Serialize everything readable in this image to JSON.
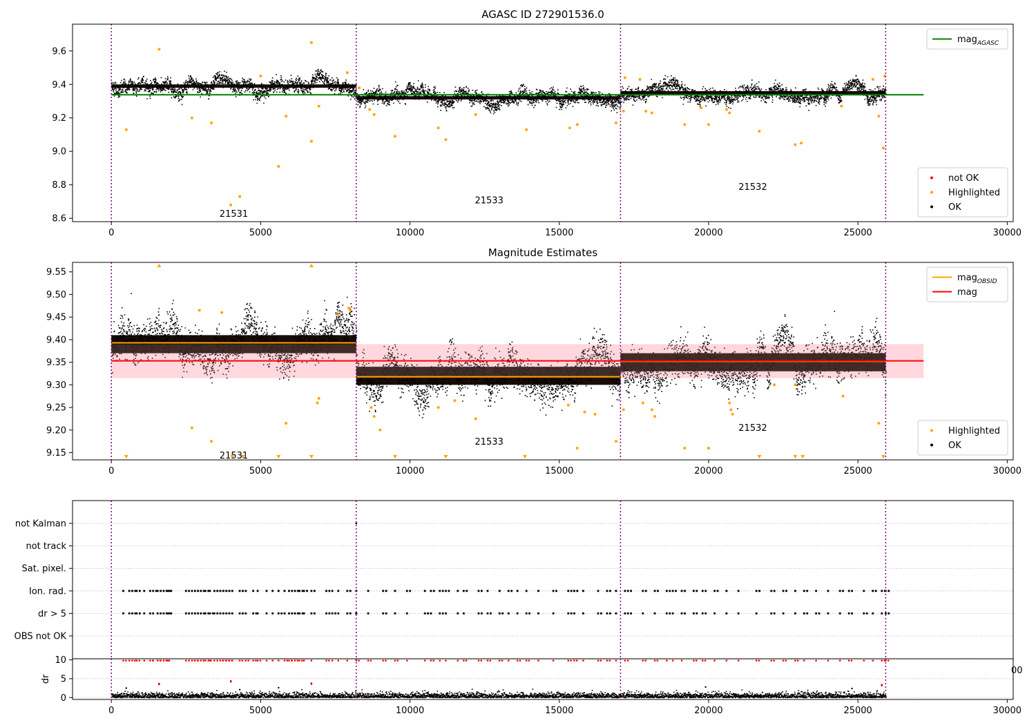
{
  "chart_data": [
    {
      "type": "scatter",
      "title": "AGASC ID 272901536.0",
      "xlim": [
        -1300,
        30200
      ],
      "ylim": [
        8.58,
        9.76
      ],
      "xticks": [
        0,
        5000,
        10000,
        15000,
        20000,
        25000,
        30000
      ],
      "yticks": [
        8.6,
        8.8,
        9.0,
        9.2,
        9.4,
        9.6
      ],
      "ytick_decimals": 1,
      "grid": false,
      "obs_boundaries": [
        0,
        8200,
        17050,
        25930
      ],
      "obs_labels": [
        {
          "text": "21531",
          "x": 4100,
          "y": 8.63
        },
        {
          "text": "21533",
          "x": 12650,
          "y": 8.71
        },
        {
          "text": "21532",
          "x": 21480,
          "y": 8.79
        }
      ],
      "segments": [
        {
          "x0": 0,
          "x1": 8200,
          "mean": 9.39,
          "spread": 0.06,
          "dense": [
            9.38,
            9.4
          ]
        },
        {
          "x0": 8200,
          "x1": 17050,
          "mean": 9.32,
          "spread": 0.06,
          "dense": [
            9.31,
            9.33
          ]
        },
        {
          "x0": 17050,
          "x1": 25930,
          "mean": 9.35,
          "spread": 0.06,
          "dense": [
            9.34,
            9.36
          ]
        }
      ],
      "ref_lines": [
        {
          "name": "mag_AGASC",
          "y": 9.338,
          "x0": 0,
          "x1": 27200,
          "color": "#008000"
        }
      ],
      "band": null,
      "highlighted": [
        [
          500,
          9.13
        ],
        [
          1600,
          9.61
        ],
        [
          2700,
          9.2
        ],
        [
          3350,
          9.17
        ],
        [
          4000,
          8.68
        ],
        [
          4300,
          8.73
        ],
        [
          5000,
          9.45
        ],
        [
          5600,
          8.91
        ],
        [
          5850,
          9.21
        ],
        [
          6700,
          9.06
        ],
        [
          6700,
          9.65
        ],
        [
          6950,
          9.27
        ],
        [
          7900,
          9.47
        ],
        [
          8300,
          9.38
        ],
        [
          8650,
          9.25
        ],
        [
          8800,
          9.22
        ],
        [
          9500,
          9.09
        ],
        [
          10950,
          9.14
        ],
        [
          11200,
          9.07
        ],
        [
          12200,
          9.22
        ],
        [
          13900,
          9.13
        ],
        [
          15350,
          9.14
        ],
        [
          15600,
          9.16
        ],
        [
          16900,
          9.17
        ],
        [
          17150,
          9.24
        ],
        [
          17200,
          9.44
        ],
        [
          17700,
          9.43
        ],
        [
          17900,
          9.24
        ],
        [
          18100,
          9.23
        ],
        [
          19200,
          9.16
        ],
        [
          19750,
          9.26
        ],
        [
          20000,
          9.16
        ],
        [
          20600,
          9.25
        ],
        [
          20700,
          9.23
        ],
        [
          21700,
          9.12
        ],
        [
          22900,
          9.04
        ],
        [
          23100,
          9.05
        ],
        [
          24450,
          9.27
        ],
        [
          25500,
          9.43
        ],
        [
          25700,
          9.21
        ],
        [
          25850,
          9.02
        ],
        [
          25900,
          9.45
        ]
      ],
      "legends": [
        {
          "position": "top-right",
          "entries": [
            {
              "kind": "line",
              "label": "mag",
              "sub": "AGASC",
              "color": "#008000"
            }
          ]
        },
        {
          "position": "bottom-right",
          "entries": [
            {
              "kind": "dot",
              "label": "not OK",
              "color": "#ff0000"
            },
            {
              "kind": "dot",
              "label": "Highlighted",
              "color": "#ffa500"
            },
            {
              "kind": "dot",
              "label": "OK",
              "color": "#000000"
            }
          ]
        }
      ]
    },
    {
      "type": "scatter",
      "title": "Magnitude Estimates",
      "xlim": [
        -1300,
        30200
      ],
      "ylim": [
        9.134,
        9.571
      ],
      "xticks": [
        0,
        5000,
        10000,
        15000,
        20000,
        25000,
        30000
      ],
      "yticks": [
        9.15,
        9.2,
        9.25,
        9.3,
        9.35,
        9.4,
        9.45,
        9.5,
        9.55
      ],
      "ytick_decimals": 2,
      "grid": false,
      "obs_boundaries": [
        0,
        8200,
        17050,
        25930
      ],
      "obs_labels": [
        {
          "text": "21531",
          "x": 4100,
          "y": 9.145
        },
        {
          "text": "21533",
          "x": 12650,
          "y": 9.175
        },
        {
          "text": "21532",
          "x": 21480,
          "y": 9.206
        }
      ],
      "segments": [
        {
          "x0": 0,
          "x1": 8200,
          "mean": 9.39,
          "spread": 0.06,
          "dense": [
            9.37,
            9.41
          ]
        },
        {
          "x0": 8200,
          "x1": 17050,
          "mean": 9.32,
          "spread": 0.06,
          "dense": [
            9.3,
            9.34
          ]
        },
        {
          "x0": 17050,
          "x1": 25930,
          "mean": 9.35,
          "spread": 0.06,
          "dense": [
            9.33,
            9.37
          ]
        }
      ],
      "ref_lines": [
        {
          "name": "mag_OBSID",
          "y": 9.393,
          "x0": 0,
          "x1": 8200,
          "color": "#ffa500"
        },
        {
          "name": "mag_OBSID",
          "y": 9.318,
          "x0": 8200,
          "x1": 17050,
          "color": "#ffa500"
        },
        {
          "name": "mag_OBSID",
          "y": 9.352,
          "x0": 17050,
          "x1": 25930,
          "color": "#ffa500"
        },
        {
          "name": "mag",
          "y": 9.353,
          "x0": 0,
          "x1": 27200,
          "color": "#ff0000"
        }
      ],
      "band": {
        "y0": 9.315,
        "y1": 9.39,
        "x0": 0,
        "x1": 27200,
        "color": "#ffc0c8"
      },
      "highlighted": [
        [
          2700,
          9.205
        ],
        [
          3350,
          9.175
        ],
        [
          5850,
          9.215
        ],
        [
          6950,
          9.27
        ],
        [
          6900,
          9.26
        ],
        [
          8700,
          9.25
        ],
        [
          8800,
          9.23
        ],
        [
          9000,
          9.2
        ],
        [
          10950,
          9.25
        ],
        [
          11500,
          9.265
        ],
        [
          12200,
          9.225
        ],
        [
          15300,
          9.255
        ],
        [
          15600,
          9.16
        ],
        [
          15850,
          9.24
        ],
        [
          16200,
          9.235
        ],
        [
          16900,
          9.175
        ],
        [
          17150,
          9.245
        ],
        [
          17800,
          9.26
        ],
        [
          18100,
          9.245
        ],
        [
          18200,
          9.23
        ],
        [
          19200,
          9.16
        ],
        [
          20000,
          9.16
        ],
        [
          20700,
          9.26
        ],
        [
          20750,
          9.245
        ],
        [
          20800,
          9.235
        ],
        [
          22200,
          9.3
        ],
        [
          22900,
          9.3
        ],
        [
          24500,
          9.275
        ],
        [
          25700,
          9.215
        ],
        [
          2950,
          9.465
        ],
        [
          3700,
          9.46
        ],
        [
          7600,
          9.455
        ],
        [
          7950,
          9.47
        ],
        [
          8000,
          9.465
        ]
      ],
      "clipped_high": [
        1600,
        6700
      ],
      "clipped_low": [
        500,
        4050,
        4400,
        5600,
        6700,
        9500,
        11200,
        13850,
        21700,
        22900,
        23150,
        25850
      ],
      "legends": [
        {
          "position": "top-right",
          "entries": [
            {
              "kind": "line",
              "label": "mag",
              "sub": "OBSID",
              "color": "#ffa500"
            },
            {
              "kind": "line",
              "label": "mag",
              "sub": "",
              "color": "#ff0000"
            }
          ]
        },
        {
          "position": "bottom-right",
          "entries": [
            {
              "kind": "dot",
              "label": "Highlighted",
              "color": "#ffa500"
            },
            {
              "kind": "dot",
              "label": "OK",
              "color": "#000000"
            }
          ]
        }
      ]
    },
    {
      "type": "scatter",
      "title": "",
      "xlim": [
        -1300,
        30200
      ],
      "categories": [
        "not Kalman",
        "not track",
        "Sat. pixel.",
        "Ion. rad.",
        "dr > 5",
        "OBS not OK"
      ],
      "grid": true,
      "obs_boundaries": [
        0,
        8200,
        17050,
        25930
      ],
      "flag_rows": [
        "Ion. rad.",
        "dr > 5"
      ],
      "flag_times": [
        400,
        600,
        700,
        850,
        1100,
        1300,
        1400,
        1550,
        1650,
        1750,
        1850,
        1900,
        2500,
        2600,
        2700,
        2800,
        2900,
        3000,
        3150,
        3250,
        3300,
        3450,
        3550,
        3650,
        3750,
        3850,
        3950,
        4050,
        4300,
        4500,
        4750,
        4900,
        5200,
        5400,
        5600,
        5800,
        5950,
        6050,
        6150,
        6300,
        6450,
        6700,
        7200,
        7400,
        7600,
        7900,
        8200,
        8600,
        9100,
        9500,
        9900,
        10500,
        10700,
        11000,
        11200,
        11600,
        11800,
        12300,
        12600,
        13000,
        13300,
        13600,
        13900,
        14300,
        14800,
        15300,
        15500,
        15800,
        16300,
        16600,
        16900,
        17200,
        17300,
        17800,
        18200,
        18600,
        18800,
        19100,
        19500,
        19800,
        20200,
        20600,
        21000,
        21600,
        22100,
        22500,
        22900,
        23200,
        23600,
        24000,
        24400,
        24700,
        25200,
        25500,
        25800,
        25930
      ]
    },
    {
      "type": "scatter",
      "title": "",
      "ylabel": "dr",
      "xlim": [
        -1300,
        30200
      ],
      "ylim": [
        -0.5,
        10.3
      ],
      "xticks": [
        0,
        5000,
        10000,
        15000,
        20000,
        25000,
        30000
      ],
      "yticks": [
        0,
        5,
        10
      ],
      "grid": true,
      "obs_boundaries": [
        0,
        8200,
        17050,
        25930
      ],
      "dr_baseline": [
        0.1,
        1.5
      ],
      "dr_spikes": [
        [
          500,
          2.5
        ],
        [
          1600,
          3.5
        ],
        [
          4000,
          4.2
        ],
        [
          4300,
          2.1
        ],
        [
          5600,
          2.6
        ],
        [
          6700,
          3.6
        ],
        [
          19900,
          2.8
        ],
        [
          24800,
          2.4
        ],
        [
          25800,
          3.2
        ]
      ]
    }
  ],
  "stray_tick_label": "00"
}
